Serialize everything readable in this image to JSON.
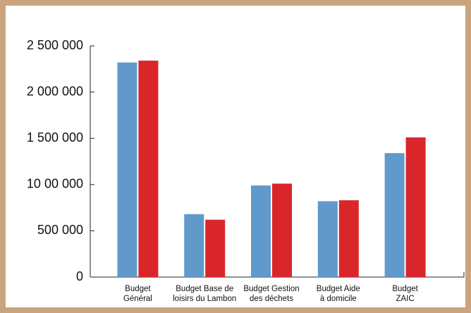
{
  "chart_data": {
    "type": "bar",
    "categories": [
      [
        "Budget",
        "Général"
      ],
      [
        "Budget Base de",
        "loisirs du Lambon"
      ],
      [
        "Budget Gestion",
        "des déchets"
      ],
      [
        "Budget Aide",
        "à domicile"
      ],
      [
        "Budget",
        "ZAIC"
      ]
    ],
    "series": [
      {
        "color": "#6199cb",
        "values": [
          2320000,
          680000,
          990000,
          820000,
          1340000
        ]
      },
      {
        "color": "#d9262b",
        "values": [
          2340000,
          620000,
          1010000,
          830000,
          1510000
        ]
      }
    ],
    "ylim": [
      0,
      2500000
    ],
    "yticks": [
      0,
      {
        "value": 500000,
        "label": "500 000"
      },
      {
        "value": 1000000,
        "label": "10 00 000"
      },
      {
        "value": 1500000,
        "label": "1 500 000"
      },
      {
        "value": 2000000,
        "label": "2 000 000"
      },
      {
        "value": 2500000,
        "label": "2 500 000"
      }
    ],
    "grid": false
  }
}
